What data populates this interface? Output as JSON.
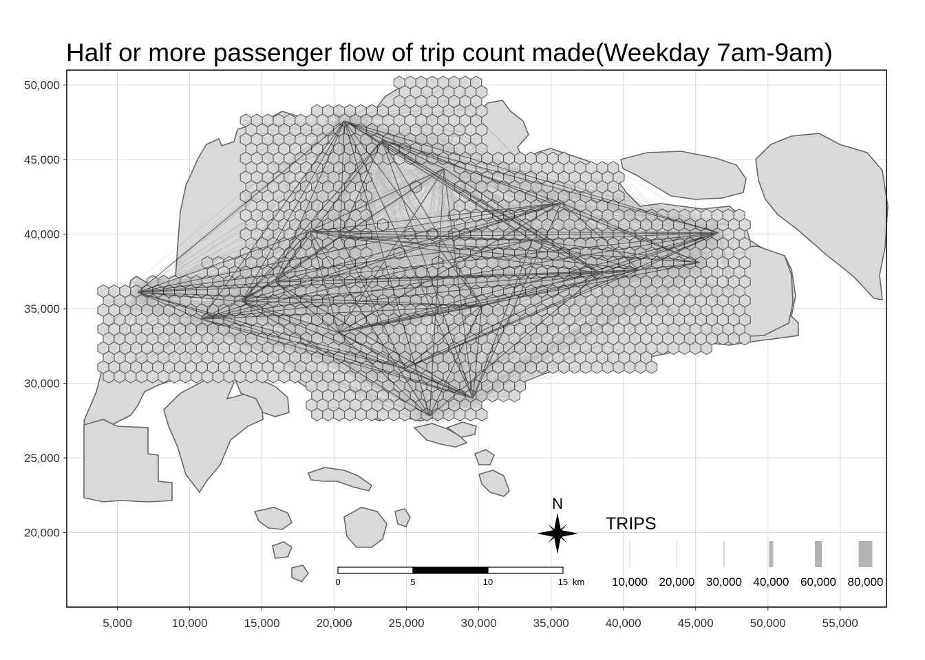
{
  "title": "Half or more passenger flow of trip count made(Weekday 7am-9am)",
  "x_axis": {
    "range": [
      1500,
      58200
    ],
    "ticks": [
      5000,
      10000,
      15000,
      20000,
      25000,
      30000,
      35000,
      40000,
      45000,
      50000,
      55000
    ],
    "tick_labels": [
      "5,000",
      "10,000",
      "15,000",
      "20,000",
      "25,000",
      "30,000",
      "35,000",
      "40,000",
      "45,000",
      "50,000",
      "55,000"
    ]
  },
  "y_axis": {
    "range": [
      15000,
      51000
    ],
    "ticks": [
      20000,
      25000,
      30000,
      35000,
      40000,
      45000,
      50000
    ],
    "tick_labels": [
      "20,000",
      "25,000",
      "30,000",
      "35,000",
      "40,000",
      "45,000",
      "50,000"
    ]
  },
  "grid": true,
  "colors": {
    "land": "#d9d9d9",
    "land_border": "#666666",
    "flow": "#000000",
    "grid": "#dddddd",
    "panel_border": "#000000"
  },
  "north_arrow": {
    "label": "N"
  },
  "scale_bar": {
    "labels": [
      "0",
      "5",
      "10",
      "15"
    ],
    "unit": "km"
  },
  "legend": {
    "title": "TRIPS",
    "entries": [
      {
        "label": "10,000",
        "width": 1
      },
      {
        "label": "20,000",
        "width": 1
      },
      {
        "label": "30,000",
        "width": 1.5
      },
      {
        "label": "40,000",
        "width": 6
      },
      {
        "label": "60,000",
        "width": 10
      },
      {
        "label": "80,000",
        "width": 20
      }
    ]
  },
  "hubs": [
    {
      "x": 13600,
      "y": 35500
    },
    {
      "x": 18300,
      "y": 40200
    },
    {
      "x": 20400,
      "y": 39800
    },
    {
      "x": 20700,
      "y": 47600
    },
    {
      "x": 23300,
      "y": 46300
    },
    {
      "x": 27600,
      "y": 44400
    },
    {
      "x": 26600,
      "y": 27800
    },
    {
      "x": 29600,
      "y": 29000
    },
    {
      "x": 30200,
      "y": 35200
    },
    {
      "x": 33700,
      "y": 39600
    },
    {
      "x": 35700,
      "y": 42100
    },
    {
      "x": 38400,
      "y": 37400
    },
    {
      "x": 41100,
      "y": 37600
    },
    {
      "x": 45300,
      "y": 38100
    },
    {
      "x": 46600,
      "y": 40100
    },
    {
      "x": 20300,
      "y": 33400
    },
    {
      "x": 24900,
      "y": 31000
    },
    {
      "x": 10800,
      "y": 34300
    },
    {
      "x": 6400,
      "y": 36100
    },
    {
      "x": 15900,
      "y": 36800
    }
  ]
}
